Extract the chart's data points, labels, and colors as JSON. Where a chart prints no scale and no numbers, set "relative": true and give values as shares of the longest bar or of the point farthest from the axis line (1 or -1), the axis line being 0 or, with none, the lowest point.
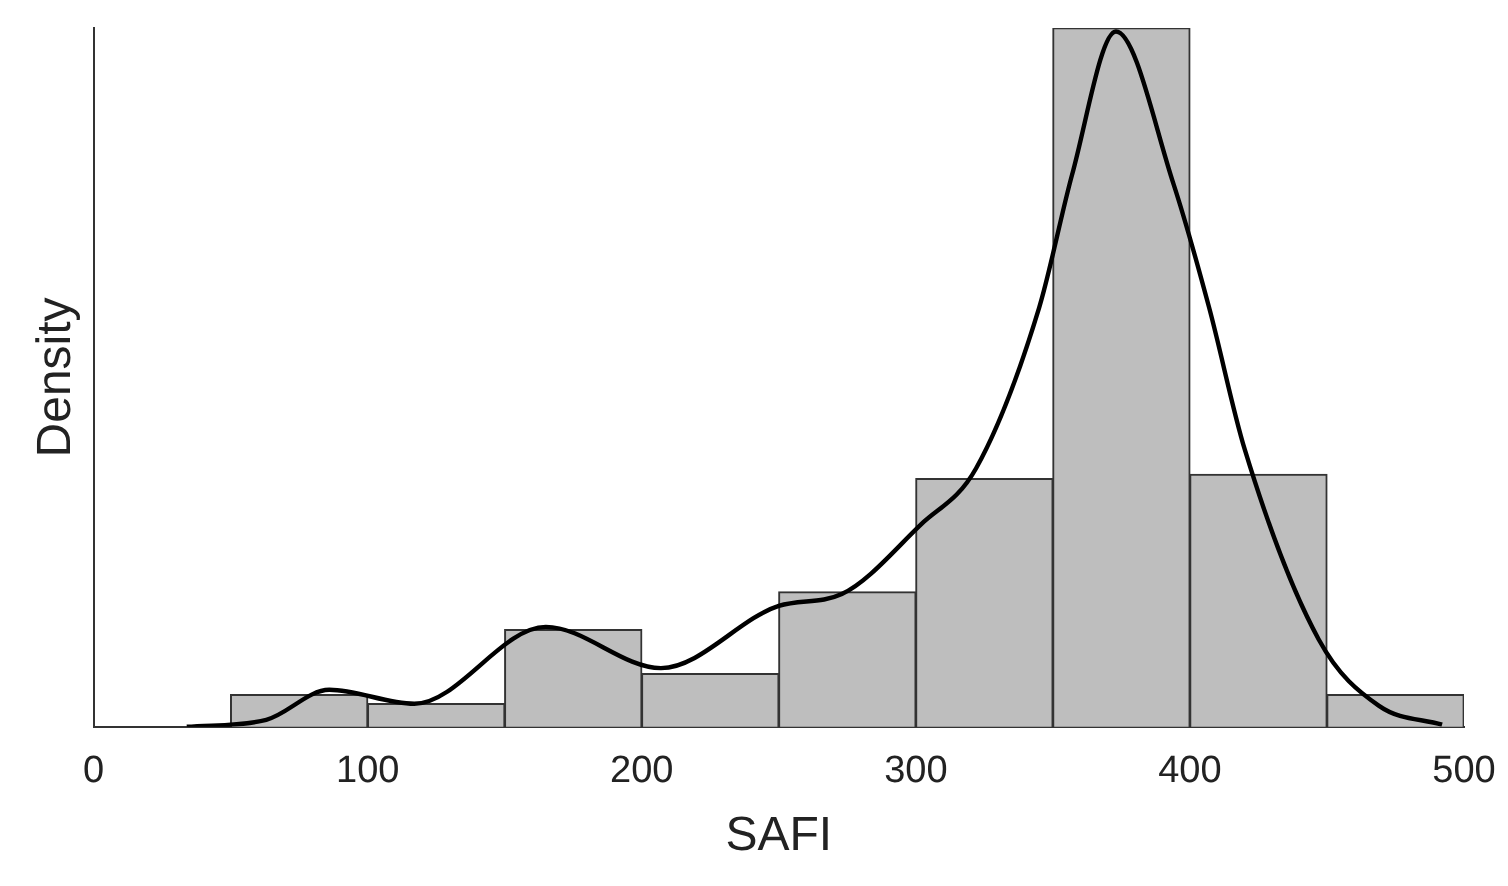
{
  "chart_data": {
    "type": "histogram",
    "xlabel": "SAFI",
    "ylabel": "Density",
    "relative": true,
    "bins": [
      50,
      100,
      150,
      200,
      250,
      300,
      350,
      400,
      450,
      500
    ],
    "values": [
      0.046,
      0.033,
      0.139,
      0.076,
      0.193,
      0.355,
      1,
      0.361,
      0.046
    ],
    "color": "#bebebe",
    "series": [
      {
        "type": "line",
        "color": "#000000",
        "x": [
          34,
          63,
          86,
          117,
          165,
          207,
          250,
          273,
          302,
          322,
          345,
          357,
          373,
          394,
          407,
          420,
          447,
          469,
          492
        ],
        "values": [
          0,
          0.01,
          0.053,
          0.033,
          0.143,
          0.084,
          0.173,
          0.19,
          0.29,
          0.37,
          0.6,
          0.79,
          0.995,
          0.777,
          0.6,
          0.397,
          0.125,
          0.03,
          0.003
        ]
      }
    ],
    "xlim": [
      0,
      500
    ],
    "xticks": [
      0,
      100,
      200,
      300,
      400,
      500
    ],
    "grid": false,
    "legend": false,
    "marker": "none",
    "line_style": "solid"
  }
}
